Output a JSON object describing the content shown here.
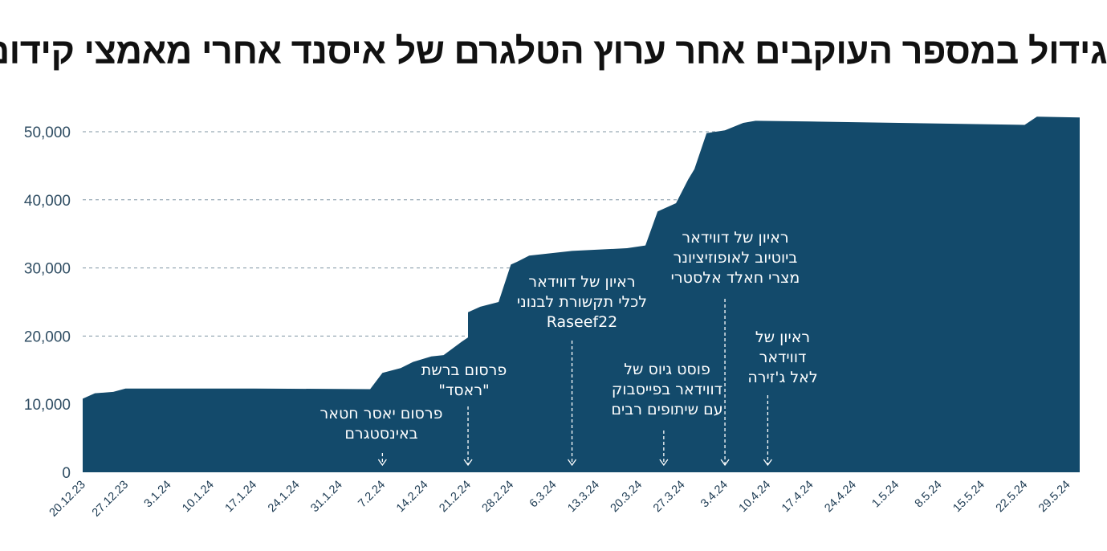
{
  "chart_data": {
    "type": "area",
    "title": "גידול במספר העוקבים אחר ערוץ הטלגרם של איסנד אחרי מאמצי קידום",
    "xlabel": "",
    "ylabel": "",
    "ylim": [
      0,
      50000
    ],
    "yticks": [
      0,
      10000,
      20000,
      30000,
      40000,
      50000
    ],
    "ytick_labels": [
      "0",
      "10,000",
      "20,000",
      "30,000",
      "40,000",
      "50,000"
    ],
    "xtick_labels": [
      "20.12.23",
      "27.12.23",
      "3.1.24",
      "10.1.24",
      "17.1.24",
      "24.1.24",
      "31.1.24",
      "7.2.24",
      "14.2.24",
      "21.2.24",
      "28.2.24",
      "6.3.24",
      "13.3.24",
      "20.3.24",
      "27.3.24",
      "3.4.24",
      "10.4.24",
      "17.4.24",
      "24.4.24",
      "1.5.24",
      "8.5.24",
      "15.5.24",
      "22.5.24",
      "29.5.24"
    ],
    "grid": "dashed horizontal",
    "area_color": "#134a6b",
    "x_unit": "date",
    "series": [
      {
        "values": [
          [
            "20.12.23",
            9000
          ],
          [
            "20.12.23",
            10800
          ],
          [
            "22.12.23",
            11600
          ],
          [
            "25.12.23",
            11800
          ],
          [
            "27.12.23",
            12300
          ],
          [
            "17.1.24",
            12300
          ],
          [
            "5.2.24",
            12200
          ],
          [
            "7.2.24",
            14600
          ],
          [
            "10.2.24",
            15300
          ],
          [
            "12.2.24",
            16200
          ],
          [
            "15.2.24",
            17000
          ],
          [
            "17.2.24",
            17200
          ],
          [
            "20.2.24",
            19200
          ],
          [
            "21.2.24",
            19800
          ],
          [
            "21.2.24",
            23500
          ],
          [
            "23.2.24",
            24300
          ],
          [
            "26.2.24",
            25000
          ],
          [
            "28.2.24",
            30500
          ],
          [
            "29.2.24",
            30900
          ],
          [
            "2.3.24",
            31800
          ],
          [
            "9.3.24",
            32500
          ],
          [
            "18.3.24",
            32900
          ],
          [
            "21.3.24",
            33300
          ],
          [
            "23.3.24",
            38300
          ],
          [
            "26.3.24",
            39500
          ],
          [
            "28.3.24",
            43000
          ],
          [
            "29.3.24",
            44500
          ],
          [
            "31.3.24",
            49800
          ],
          [
            "3.4.24",
            50200
          ],
          [
            "6.4.24",
            51300
          ],
          [
            "8.4.24",
            51600
          ],
          [
            "17.4.24",
            51500
          ],
          [
            "22.5.24",
            51000
          ],
          [
            "24.5.24",
            52200
          ],
          [
            "31.5.24",
            52100
          ]
        ]
      }
    ],
    "annotations": [
      {
        "lines": [
          "פרסום יאסר חטאר",
          "באינסטגרם"
        ],
        "date": "7.2.24"
      },
      {
        "lines": [
          "פרסום ברשת",
          "\"ראסד\""
        ],
        "date": "21.2.24"
      },
      {
        "lines": [
          "ראיון של דווידאר",
          "לכלי תקשורת לבנוני",
          "Raseef22"
        ],
        "date": "9.3.24"
      },
      {
        "lines": [
          "פוסט גיוס של",
          "דווידאר בפייסבוק",
          "עם שיתופים רבים"
        ],
        "date": "24.3.24"
      },
      {
        "lines": [
          "ראיון של דווידאר",
          "ביוטיוב לאופוזיציונר",
          "מצרי חאלד אלסטרי"
        ],
        "date": "3.4.24"
      },
      {
        "lines": [
          "ראיון של",
          "דווידאר",
          "לאל ג'זירה"
        ],
        "date": "10.4.24"
      }
    ]
  }
}
